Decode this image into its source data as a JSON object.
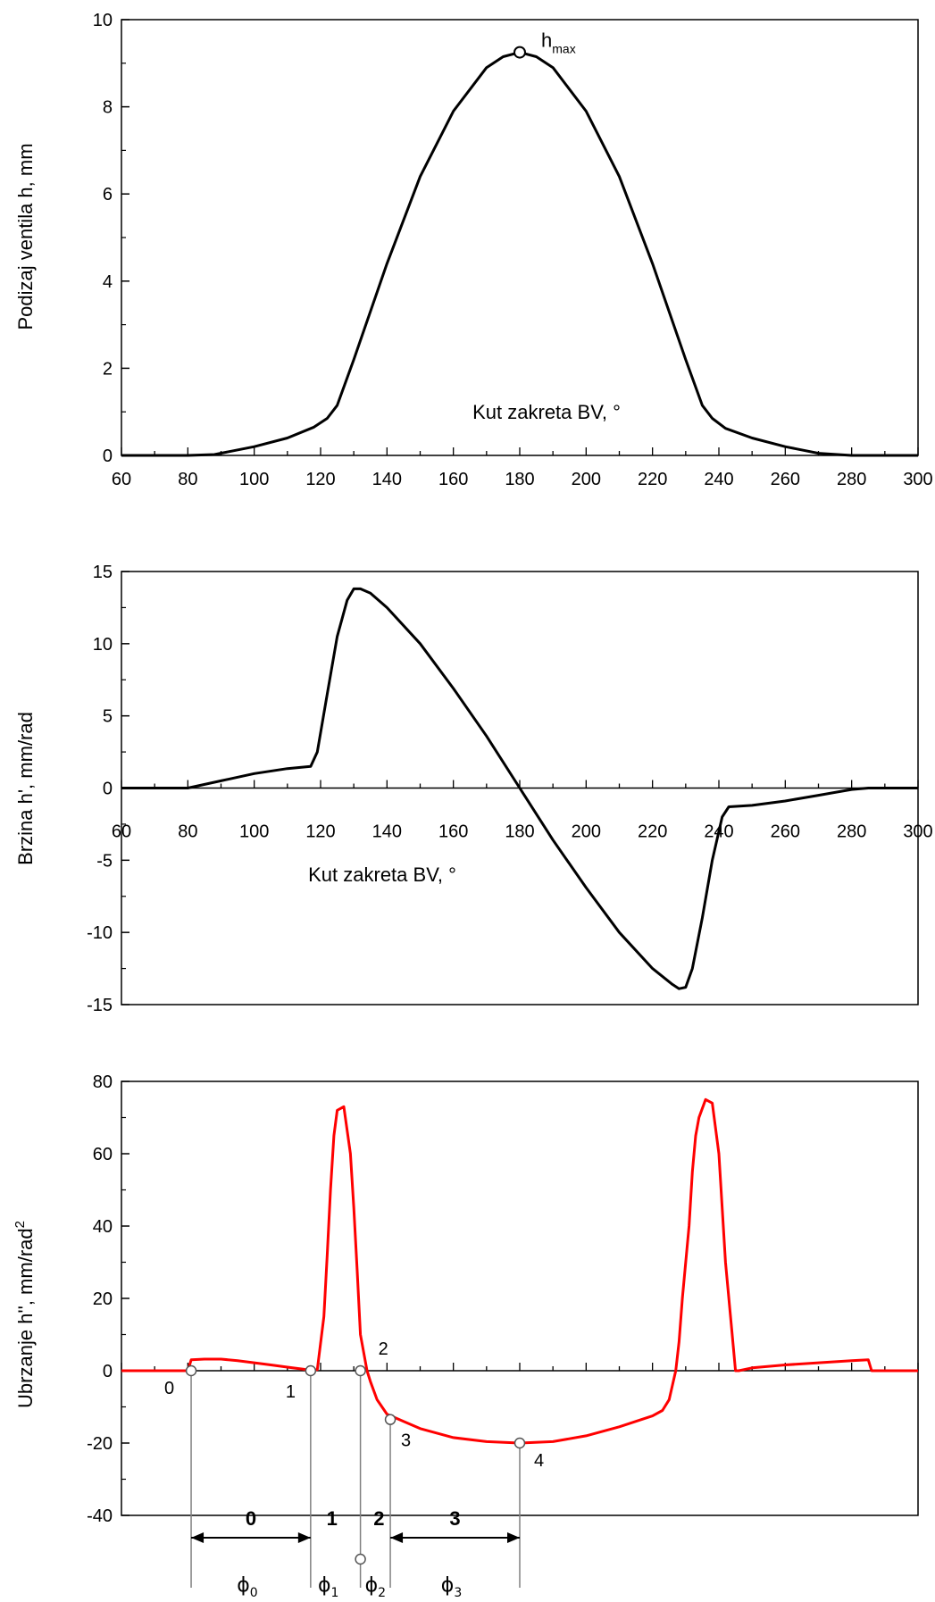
{
  "colors": {
    "axis": "#000000",
    "lift": "#000000",
    "velocity": "#000000",
    "acceleration": "#ff0000",
    "guide": "#808080"
  },
  "chart_data": [
    {
      "type": "line",
      "ylabel": "Podizaj ventila h, mm",
      "xlabel": "Kut zakreta BV, °",
      "xlim": [
        60,
        300
      ],
      "ylim": [
        0,
        10
      ],
      "xticks": [
        60,
        80,
        100,
        120,
        140,
        160,
        180,
        200,
        220,
        240,
        260,
        280,
        300
      ],
      "yticks": [
        0,
        2,
        4,
        6,
        8,
        10
      ],
      "series": [
        {
          "x": [
            60,
            80,
            88,
            100,
            110,
            118,
            122,
            125,
            130,
            140,
            150,
            160,
            170,
            175,
            180,
            185,
            190,
            200,
            210,
            220,
            230,
            235,
            238,
            242,
            250,
            260,
            270,
            280,
            300
          ],
          "values": [
            0,
            0,
            0.02,
            0.2,
            0.4,
            0.65,
            0.85,
            1.15,
            2.2,
            4.4,
            6.4,
            7.9,
            8.9,
            9.15,
            9.25,
            9.15,
            8.9,
            7.9,
            6.4,
            4.4,
            2.2,
            1.15,
            0.85,
            0.62,
            0.4,
            0.2,
            0.05,
            0,
            0
          ]
        }
      ],
      "annotations": [
        {
          "x": 180,
          "y": 9.25,
          "label": "h",
          "sub": "max"
        }
      ]
    },
    {
      "type": "line",
      "ylabel": "Brzina h', mm/rad",
      "xlabel": "Kut zakreta BV, °",
      "xlim": [
        60,
        300
      ],
      "ylim": [
        -15,
        15
      ],
      "xticks": [
        60,
        80,
        100,
        120,
        140,
        160,
        180,
        200,
        220,
        240,
        260,
        280,
        300
      ],
      "yticks": [
        -15,
        -10,
        -5,
        0,
        5,
        10,
        15
      ],
      "series": [
        {
          "x": [
            60,
            80,
            90,
            100,
            110,
            117,
            119,
            122,
            125,
            128,
            130,
            132,
            135,
            140,
            150,
            160,
            170,
            180,
            190,
            200,
            210,
            220,
            226,
            228,
            230,
            232,
            235,
            238,
            241,
            243,
            250,
            260,
            270,
            280,
            285,
            300
          ],
          "values": [
            0,
            0,
            0.5,
            1.0,
            1.35,
            1.5,
            2.5,
            6.5,
            10.5,
            13.0,
            13.8,
            13.8,
            13.5,
            12.5,
            10.0,
            6.9,
            3.6,
            0,
            -3.6,
            -6.9,
            -10.0,
            -12.5,
            -13.6,
            -13.9,
            -13.8,
            -12.5,
            -9.0,
            -5.0,
            -2.0,
            -1.3,
            -1.2,
            -0.9,
            -0.5,
            -0.1,
            0,
            0
          ]
        }
      ]
    },
    {
      "type": "line",
      "ylabel": "Ubrzanje h'', mm/rad²",
      "ylabel_main": "Ubrzanje h'', mm/rad",
      "ylabel_sup": "2",
      "xlim": [
        60,
        300
      ],
      "ylim": [
        -40,
        80
      ],
      "yticks": [
        -40,
        -20,
        0,
        20,
        40,
        60,
        80
      ],
      "series": [
        {
          "x": [
            60,
            80,
            81,
            85,
            90,
            95,
            100,
            105,
            110,
            115,
            117,
            119,
            121,
            122,
            123,
            124,
            125,
            127,
            129,
            130,
            131,
            132,
            134,
            135,
            137,
            140,
            145,
            150,
            160,
            170,
            180,
            190,
            200,
            210,
            220,
            223,
            225,
            226,
            227,
            228,
            229,
            231,
            232,
            233,
            234,
            236,
            238,
            240,
            242,
            244,
            245,
            246,
            250,
            260,
            270,
            280,
            285,
            286,
            300
          ],
          "values": [
            0,
            0,
            3,
            3.2,
            3.2,
            2.8,
            2.2,
            1.6,
            1.0,
            0.4,
            0,
            0.3,
            15,
            32,
            50,
            65,
            72,
            73,
            60,
            45,
            28,
            10,
            0,
            -3,
            -8,
            -12,
            -14,
            -16,
            -18.5,
            -19.6,
            -20,
            -19.6,
            -18,
            -15.5,
            -12.5,
            -11,
            -8,
            -4,
            0,
            8,
            20,
            40,
            55,
            65,
            70,
            75,
            74,
            60,
            30,
            10,
            0,
            0,
            0.8,
            1.6,
            2.2,
            2.8,
            3,
            0,
            0
          ]
        }
      ],
      "annotations": [
        {
          "x": 81,
          "y": 0,
          "label": "0"
        },
        {
          "x": 117,
          "y": 0,
          "label": "1"
        },
        {
          "x": 132,
          "y": 0,
          "label": "2"
        },
        {
          "x": 141,
          "y": -13.5,
          "label": "3"
        },
        {
          "x": 180,
          "y": -20,
          "label": "4"
        }
      ],
      "segments": [
        {
          "label": "0",
          "phi": "ϕ",
          "sub": "0"
        },
        {
          "label": "1",
          "phi": "ϕ",
          "sub": "1"
        },
        {
          "label": "2",
          "phi": "ϕ",
          "sub": "2"
        },
        {
          "label": "3",
          "phi": "ϕ",
          "sub": "3"
        }
      ]
    }
  ]
}
